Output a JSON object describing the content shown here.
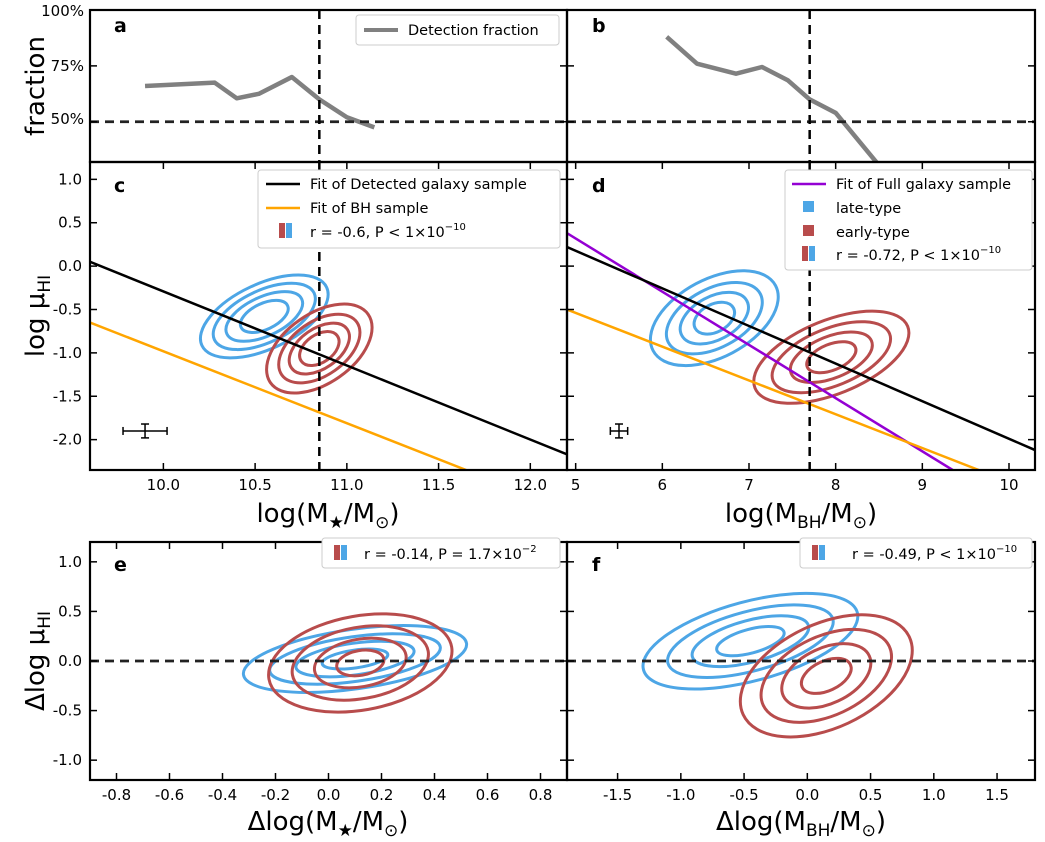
{
  "chart_data": [
    {
      "panel": "a",
      "type": "line",
      "ylabel": "fraction",
      "ytick_labels": [
        "50%",
        "75%",
        "100%"
      ],
      "ylim": [
        0.32,
        1.0
      ],
      "xlim": [
        9.6,
        12.2
      ],
      "vline": 10.85,
      "hline": 0.5,
      "legend": "top-right",
      "series": [
        {
          "name": "Detection fraction",
          "color": "#808080",
          "x": [
            9.9,
            10.28,
            10.4,
            10.52,
            10.7,
            10.85,
            11.0,
            11.15
          ],
          "y": [
            0.66,
            0.675,
            0.605,
            0.625,
            0.7,
            0.6,
            0.52,
            0.475
          ]
        }
      ]
    },
    {
      "panel": "b",
      "type": "line",
      "xlim": [
        4.9,
        10.3
      ],
      "ylim": [
        0.32,
        1.0
      ],
      "vline": 7.7,
      "hline": 0.5,
      "series": [
        {
          "color": "#808080",
          "x": [
            6.05,
            6.4,
            6.85,
            7.15,
            7.45,
            7.7,
            8.0,
            8.5
          ],
          "y": [
            0.88,
            0.76,
            0.715,
            0.745,
            0.685,
            0.6,
            0.54,
            0.305
          ]
        }
      ]
    },
    {
      "panel": "c",
      "type": "contour",
      "xlabel": "log(M★/M⊙)",
      "ylabel": "log μHI",
      "xlim": [
        9.6,
        12.2
      ],
      "ylim": [
        -2.35,
        1.2
      ],
      "xticks": [
        10.0,
        10.5,
        11.0,
        11.5,
        12.0
      ],
      "xtick_labels": [
        "10.0",
        "10.5",
        "11.0",
        "11.5",
        "12.0"
      ],
      "yticks": [
        -2.0,
        -1.5,
        -1.0,
        -0.5,
        0.0,
        0.5,
        1.0
      ],
      "ytick_labels": [
        "-2.0",
        "-1.5",
        "-1.0",
        "-0.5",
        "0.0",
        "0.5",
        "1.0"
      ],
      "vline": 10.85,
      "legend": "top-right",
      "lines": [
        {
          "name": "Fit of Detected galaxy sample",
          "color": "#000000",
          "x": [
            9.6,
            12.2
          ],
          "y": [
            0.05,
            -2.17
          ]
        },
        {
          "name": "Fit of BH sample",
          "color": "#FFA500",
          "x": [
            9.6,
            11.65
          ],
          "y": [
            -0.65,
            -2.35
          ]
        }
      ],
      "stat": "r = -0.6, P < 1×10⁻¹⁰",
      "errorbar": {
        "x": 9.9,
        "y": -1.9,
        "xerr": 0.12,
        "yerr": 0.08
      },
      "contours": {
        "late-type": {
          "color": "#4DA6E6",
          "center": [
            10.55,
            -0.58
          ],
          "widths": [
            0.75,
            0.6,
            0.45,
            0.28
          ],
          "heights": [
            0.75,
            0.6,
            0.45,
            0.3
          ],
          "angle": -25
        },
        "early-type": {
          "color": "#B84C4C",
          "center": [
            10.85,
            -0.95
          ],
          "widths": [
            0.65,
            0.5,
            0.37,
            0.24
          ],
          "heights": [
            0.8,
            0.62,
            0.46,
            0.32
          ],
          "angle": -35
        }
      }
    },
    {
      "panel": "d",
      "type": "contour",
      "xlabel": "log(MBH/M⊙)",
      "xlim": [
        4.9,
        10.3
      ],
      "ylim": [
        -2.35,
        1.2
      ],
      "xticks": [
        5,
        6,
        7,
        8,
        9,
        10
      ],
      "xtick_labels": [
        "5",
        "6",
        "7",
        "8",
        "9",
        "10"
      ],
      "yticks": [
        -2.0,
        -1.5,
        -1.0,
        -0.5,
        0.0,
        0.5,
        1.0
      ],
      "vline": 7.7,
      "legend": "top-right",
      "lines": [
        {
          "name": "Fit of Full galaxy sample",
          "color": "#9400D3",
          "x": [
            4.9,
            9.35
          ],
          "y": [
            0.38,
            -2.35
          ]
        },
        {
          "color": "#000000",
          "x": [
            4.9,
            10.3
          ],
          "y": [
            0.22,
            -2.12
          ]
        },
        {
          "color": "#FFA500",
          "x": [
            4.9,
            9.65
          ],
          "y": [
            -0.5,
            -2.35
          ]
        }
      ],
      "legend_entries": [
        {
          "label": "Fit of Full galaxy sample",
          "color": "#9400D3",
          "kind": "line"
        },
        {
          "label": "late-type",
          "color": "#4DA6E6",
          "kind": "patch"
        },
        {
          "label": "early-type",
          "color": "#B84C4C",
          "kind": "patch"
        },
        {
          "label": "r = -0.72, P < 1×10⁻¹⁰",
          "kind": "pair"
        }
      ],
      "errorbar": {
        "x": 5.5,
        "y": -1.9,
        "xerr": 0.1,
        "yerr": 0.08
      },
      "contours": {
        "late-type": {
          "color": "#4DA6E6",
          "center": [
            6.6,
            -0.6
          ],
          "widths": [
            1.6,
            1.2,
            0.85,
            0.5
          ],
          "heights": [
            0.9,
            0.68,
            0.5,
            0.32
          ],
          "angle": -28
        },
        "early-type": {
          "color": "#B84C4C",
          "center": [
            7.95,
            -1.05
          ],
          "widths": [
            1.9,
            1.45,
            1.0,
            0.6
          ],
          "heights": [
            0.85,
            0.66,
            0.48,
            0.3
          ],
          "angle": -22
        }
      }
    },
    {
      "panel": "e",
      "type": "contour",
      "xlabel": "Δlog(M★/M⊙)",
      "ylabel": "Δlog μHI",
      "xlim": [
        -0.9,
        0.9
      ],
      "ylim": [
        -1.2,
        1.2
      ],
      "xticks": [
        -0.8,
        -0.6,
        -0.4,
        -0.2,
        0.0,
        0.2,
        0.4,
        0.6,
        0.8
      ],
      "xtick_labels": [
        "-0.8",
        "-0.6",
        "-0.4",
        "-0.2",
        "0.0",
        "0.2",
        "0.4",
        "0.6",
        "0.8"
      ],
      "yticks": [
        -1.0,
        -0.5,
        0.0,
        0.5,
        1.0
      ],
      "ytick_labels": [
        "-1.0",
        "-0.5",
        "0.0",
        "0.5",
        "1.0"
      ],
      "hline": 0.0,
      "stat": "r = -0.14, P = 1.7×10⁻²",
      "contours": {
        "late-type": {
          "color": "#4DA6E6",
          "center": [
            0.1,
            0.02
          ],
          "widths": [
            0.85,
            0.65,
            0.45,
            0.25
          ],
          "heights": [
            0.6,
            0.45,
            0.32,
            0.18
          ],
          "angle": -8
        },
        "early-type": {
          "color": "#B84C4C",
          "center": [
            0.12,
            -0.02
          ],
          "widths": [
            0.7,
            0.52,
            0.35,
            0.18
          ],
          "heights": [
            0.95,
            0.72,
            0.48,
            0.25
          ],
          "angle": -10
        }
      }
    },
    {
      "panel": "f",
      "type": "contour",
      "xlabel": "Δlog(MBH/M⊙)",
      "xlim": [
        -1.9,
        1.8
      ],
      "ylim": [
        -1.2,
        1.2
      ],
      "xticks": [
        -1.5,
        -1.0,
        -0.5,
        0.0,
        0.5,
        1.0,
        1.5
      ],
      "xtick_labels": [
        "-1.5",
        "-1.0",
        "-0.5",
        "0.0",
        "0.5",
        "1.0",
        "1.5"
      ],
      "yticks": [
        -1.0,
        -0.5,
        0.0,
        0.5,
        1.0
      ],
      "hline": 0.0,
      "stat": "r = -0.49, P < 1×10⁻¹⁰",
      "contours": {
        "late-type": {
          "color": "#4DA6E6",
          "center": [
            -0.45,
            0.2
          ],
          "widths": [
            1.75,
            1.35,
            0.95,
            0.55
          ],
          "heights": [
            0.8,
            0.6,
            0.42,
            0.24
          ],
          "angle": -15
        },
        "early-type": {
          "color": "#B84C4C",
          "center": [
            0.15,
            -0.15
          ],
          "widths": [
            1.45,
            1.1,
            0.75,
            0.42
          ],
          "heights": [
            1.05,
            0.8,
            0.56,
            0.3
          ],
          "angle": -25
        }
      }
    }
  ],
  "labels": {
    "a": "a",
    "b": "b",
    "c": "c",
    "d": "d",
    "e": "e",
    "f": "f",
    "fraction": "fraction",
    "pct50": "50%",
    "pct75": "75%",
    "pct100": "100%",
    "log": "log",
    "mu": "μ",
    "HI": "HI",
    "delta_log": "Δlog",
    "mstar_prefix": "log(M",
    "mstar_star": "★",
    "msun_mid": "/M",
    "msun_sym": "⊙",
    "close": ")",
    "mbh_prefix": "log(M",
    "bh": "BH",
    "dmstar_prefix": "Δlog(M",
    "dmbh_prefix": "Δlog(M",
    "legend_a": "Detection fraction",
    "legend_c1": "Fit of Detected galaxy sample",
    "legend_c2": "Fit of BH sample",
    "legend_c3_pre": "r = -0.6, P < 1×10",
    "legend_c3_exp": "−10",
    "legend_d1": "Fit of Full galaxy sample",
    "legend_d2": "late-type",
    "legend_d3": "early-type",
    "legend_d4_pre": "r = -0.72, P < 1×10",
    "legend_d4_exp": "−10",
    "legend_e_pre": "r = -0.14, P = 1.7×10",
    "legend_e_exp": "−2",
    "legend_f_pre": "r = -0.49, P < 1×10",
    "legend_f_exp": "−10"
  }
}
